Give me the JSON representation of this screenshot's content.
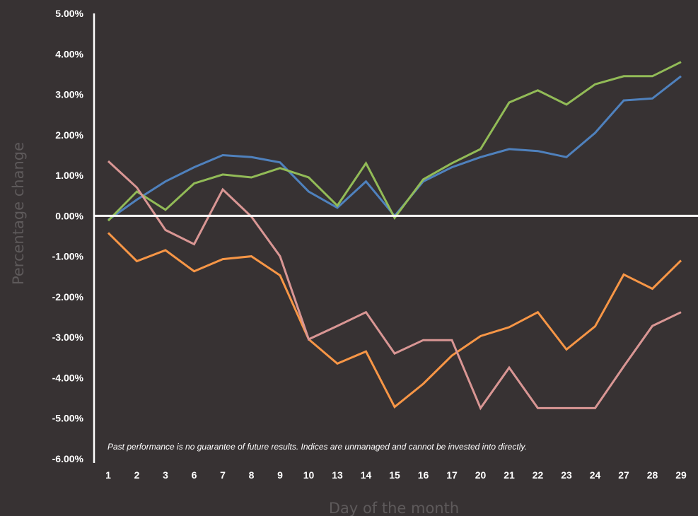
{
  "chart_data": {
    "type": "line",
    "xlabel": "Day of the month",
    "ylabel": "Percentage change",
    "categories": [
      "1",
      "2",
      "3",
      "6",
      "7",
      "8",
      "9",
      "10",
      "13",
      "14",
      "15",
      "16",
      "17",
      "20",
      "21",
      "22",
      "23",
      "24",
      "27",
      "28",
      "29"
    ],
    "ylim": [
      -6,
      5
    ],
    "yticks": [
      "5.00%",
      "4.00%",
      "3.00%",
      "2.00%",
      "1.00%",
      "0.00%",
      "-1.00%",
      "-2.00%",
      "-3.00%",
      "-4.00%",
      "-5.00%",
      "-6.00%"
    ],
    "grid": false,
    "legend": "none",
    "series": [
      {
        "color": "#4f81bd",
        "values": [
          -0.1,
          0.4,
          0.85,
          1.2,
          1.5,
          1.45,
          1.32,
          0.6,
          0.2,
          0.85,
          0.0,
          0.85,
          1.2,
          1.45,
          1.65,
          1.6,
          1.45,
          2.05,
          2.85,
          2.9,
          3.45
        ]
      },
      {
        "color": "#92bb57",
        "values": [
          -0.12,
          0.6,
          0.15,
          0.8,
          1.02,
          0.95,
          1.18,
          0.95,
          0.25,
          1.3,
          -0.05,
          0.9,
          1.3,
          1.65,
          2.8,
          3.1,
          2.75,
          3.25,
          3.45,
          3.45,
          3.8
        ]
      },
      {
        "color": "#f79646",
        "values": [
          -0.42,
          -1.12,
          -0.85,
          -1.37,
          -1.07,
          -1.0,
          -1.47,
          -3.05,
          -3.65,
          -3.35,
          -4.72,
          -4.15,
          -3.45,
          -2.97,
          -2.75,
          -2.38,
          -3.3,
          -2.73,
          -1.45,
          -1.8,
          -1.1
        ]
      },
      {
        "color": "#d99694",
        "values": [
          1.35,
          0.7,
          -0.35,
          -0.7,
          0.65,
          -0.02,
          -1.0,
          -3.05,
          -2.72,
          -2.38,
          -3.4,
          -3.07,
          -3.07,
          -4.75,
          -3.75,
          -4.75,
          -4.75,
          -4.75,
          -3.72,
          -2.72,
          -2.38
        ]
      }
    ],
    "annotations": [
      "Past performance is no guarantee of future results. Indices are unmanaged and cannot be invested into directly."
    ],
    "colors": {
      "background": "#373233",
      "axis": "#ffffff",
      "tick_text": "#ffffff",
      "axis_title": "#5e5a5b"
    }
  }
}
